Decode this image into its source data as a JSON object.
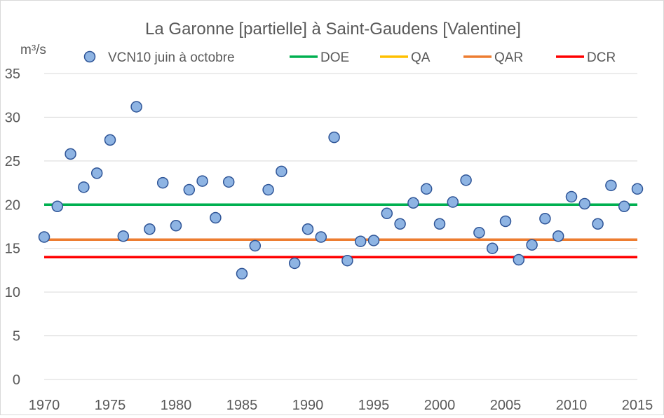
{
  "chart_data": {
    "type": "scatter",
    "title": "La Garonne [partielle] à Saint-Gaudens [Valentine]",
    "ylabel": "m³/s",
    "xlabel": "",
    "xlim": [
      1970,
      2015
    ],
    "ylim": [
      0,
      35
    ],
    "x_ticks": [
      1970,
      1975,
      1980,
      1985,
      1990,
      1995,
      2000,
      2005,
      2010,
      2015
    ],
    "y_ticks": [
      0,
      5,
      10,
      15,
      20,
      25,
      30,
      35
    ],
    "grid": "horizontal",
    "legend_position": "top",
    "series": [
      {
        "name": "VCN10 juin à octobre",
        "kind": "scatter",
        "color": "#8EB4E3",
        "edge_color": "#2F5597",
        "x": [
          1970,
          1971,
          1972,
          1973,
          1974,
          1975,
          1976,
          1977,
          1978,
          1979,
          1980,
          1981,
          1982,
          1983,
          1984,
          1985,
          1986,
          1987,
          1988,
          1989,
          1990,
          1991,
          1992,
          1993,
          1994,
          1995,
          1996,
          1997,
          1998,
          1999,
          2000,
          2001,
          2002,
          2003,
          2004,
          2005,
          2006,
          2007,
          2008,
          2009,
          2010,
          2011,
          2012,
          2013,
          2014,
          2015
        ],
        "y": [
          16.3,
          19.8,
          25.8,
          22.0,
          23.6,
          27.4,
          16.4,
          31.2,
          17.2,
          22.5,
          17.6,
          21.7,
          22.7,
          18.5,
          22.6,
          12.1,
          15.3,
          21.7,
          23.8,
          13.3,
          17.2,
          16.3,
          27.7,
          13.6,
          15.8,
          15.9,
          19.0,
          17.8,
          20.2,
          21.8,
          17.8,
          20.3,
          22.8,
          16.8,
          15.0,
          18.1,
          13.7,
          15.4,
          18.4,
          16.4,
          20.9,
          20.1,
          17.8,
          22.2,
          19.8,
          21.8
        ]
      },
      {
        "name": "DOE",
        "kind": "hline",
        "color": "#00B050",
        "value": 20
      },
      {
        "name": "QA",
        "kind": "hline",
        "color": "#FFC000",
        "value": 16
      },
      {
        "name": "QAR",
        "kind": "hline",
        "color": "#ED7D31",
        "value": 16
      },
      {
        "name": "DCR",
        "kind": "hline",
        "color": "#FF0000",
        "value": 14
      }
    ]
  }
}
